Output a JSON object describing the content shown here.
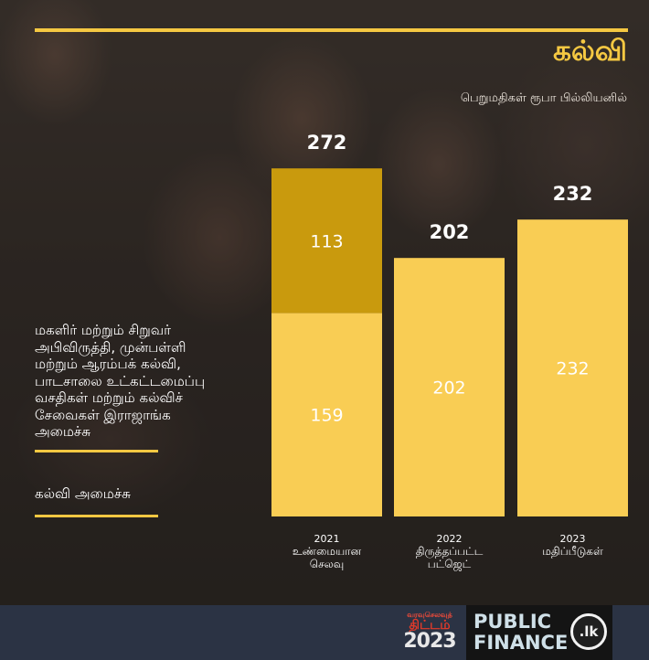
{
  "header": {
    "title": "கல்வி",
    "unit_label": "பெறுமதிகள் ரூபா பில்லியனில்"
  },
  "left_panel": {
    "ministry_1": "மகளிர் மற்றும் சிறுவர் அபிவிருத்தி, முன்பள்ளி மற்றும் ஆரம்பக் கல்வி, பாடசாலை உட்கட்டமைப்பு வசதிகள் மற்றும் கல்விச் சேவைகள் இராஜாங்க அமைச்சு",
    "ministry_2": "கல்வி அமைச்சு"
  },
  "colors": {
    "accent": "#f5c842",
    "bar_light": "#f9cd54",
    "bar_dark": "#c99a0d",
    "footer_bg": "#2b3344"
  },
  "chart_data": {
    "type": "bar",
    "stacked": true,
    "categories": [
      [
        "2021",
        "உண்மையான",
        "செலவு"
      ],
      [
        "2022",
        "திருத்தப்பட்ட",
        "பட்ஜெட்"
      ],
      [
        "2023",
        "மதிப்பீடுகள்"
      ]
    ],
    "series": [
      {
        "values": [
          159,
          202,
          232
        ],
        "color": "#f9cd54"
      },
      {
        "values": [
          113,
          0,
          0
        ],
        "color": "#c99a0d"
      }
    ],
    "totals": [
      272,
      202,
      232
    ],
    "ylim": [
      0,
      272
    ]
  },
  "footer": {
    "budget_logo": {
      "line1": "வரவுசெலவுத்",
      "line2": "திட்டம்",
      "year": "2023"
    },
    "pf_logo": {
      "line1": "PUBLIC",
      "line2": "FINANCE",
      "badge": ".lk"
    }
  }
}
